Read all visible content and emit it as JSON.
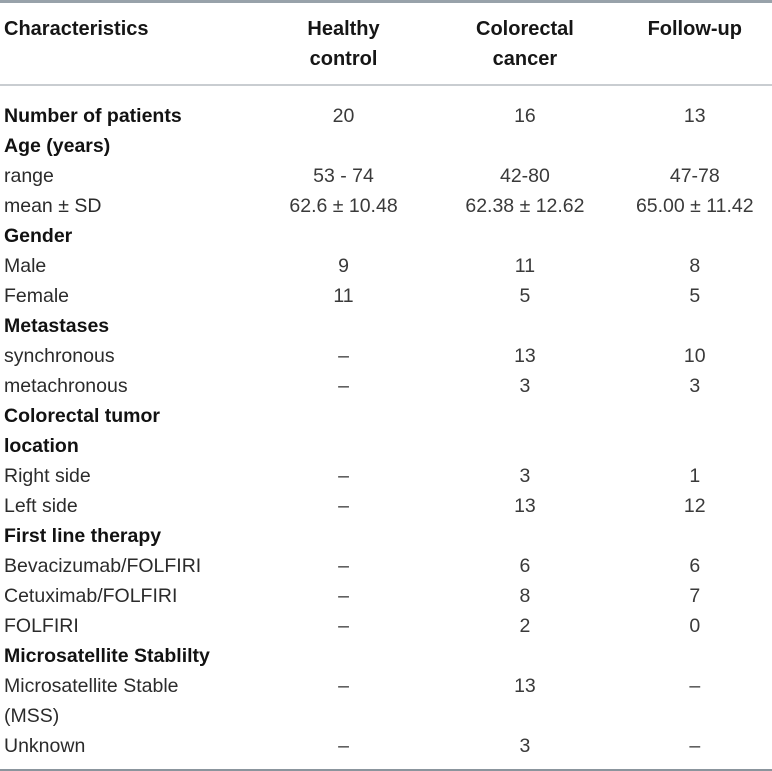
{
  "colors": {
    "rule_outer_top": "#98a2aa",
    "rule_outer_bottom": "#8b959d",
    "rule_header_separator": "#c9cdd1",
    "text_bold": "#121212",
    "text_regular": "#2b2b2b",
    "background": "#ffffff"
  },
  "table": {
    "columns": [
      "Characteristics",
      "Healthy\ncontrol",
      "Colorectal\ncancer",
      "Follow-up"
    ],
    "rows": [
      {
        "label": "Number of patients",
        "bold": true,
        "values": [
          "20",
          "16",
          "13"
        ]
      },
      {
        "label": "Age (years)",
        "bold": true,
        "values": [
          "",
          "",
          ""
        ]
      },
      {
        "label": "range",
        "bold": false,
        "values": [
          "53 - 74",
          "42-80",
          "47-78"
        ]
      },
      {
        "label": "mean ± SD",
        "bold": false,
        "values": [
          "62.6 ± 10.48",
          "62.38 ± 12.62",
          "65.00 ± 11.42"
        ]
      },
      {
        "label": "Gender",
        "bold": true,
        "values": [
          "",
          "",
          ""
        ]
      },
      {
        "label": "Male",
        "bold": false,
        "values": [
          "9",
          "11",
          "8"
        ]
      },
      {
        "label": "Female",
        "bold": false,
        "values": [
          "11",
          "5",
          "5"
        ]
      },
      {
        "label": "Metastases",
        "bold": true,
        "values": [
          "",
          "",
          ""
        ]
      },
      {
        "label": "synchronous",
        "bold": false,
        "values": [
          "–",
          "13",
          "10"
        ]
      },
      {
        "label": "metachronous",
        "bold": false,
        "values": [
          "–",
          "3",
          "3"
        ]
      },
      {
        "label": "Colorectal tumor\nlocation",
        "bold": true,
        "values": [
          "",
          "",
          ""
        ]
      },
      {
        "label": "Right side",
        "bold": false,
        "values": [
          "–",
          "3",
          "1"
        ]
      },
      {
        "label": "Left side",
        "bold": false,
        "values": [
          "–",
          "13",
          "12"
        ]
      },
      {
        "label": "First line therapy",
        "bold": true,
        "values": [
          "",
          "",
          ""
        ]
      },
      {
        "label": "Bevacizumab/FOLFIRI",
        "bold": false,
        "values": [
          "–",
          "6",
          "6"
        ]
      },
      {
        "label": "Cetuximab/FOLFIRI",
        "bold": false,
        "values": [
          "–",
          "8",
          "7"
        ]
      },
      {
        "label": "FOLFIRI",
        "bold": false,
        "values": [
          "–",
          "2",
          "0"
        ]
      },
      {
        "label": "Microsatellite Stablilty",
        "bold": true,
        "values": [
          "",
          "",
          ""
        ]
      },
      {
        "label": "Microsatellite Stable\n(MSS)",
        "bold": false,
        "values": [
          "–",
          "13",
          "–"
        ]
      },
      {
        "label": "Unknown",
        "bold": false,
        "values": [
          "–",
          "3",
          "–"
        ]
      }
    ]
  }
}
